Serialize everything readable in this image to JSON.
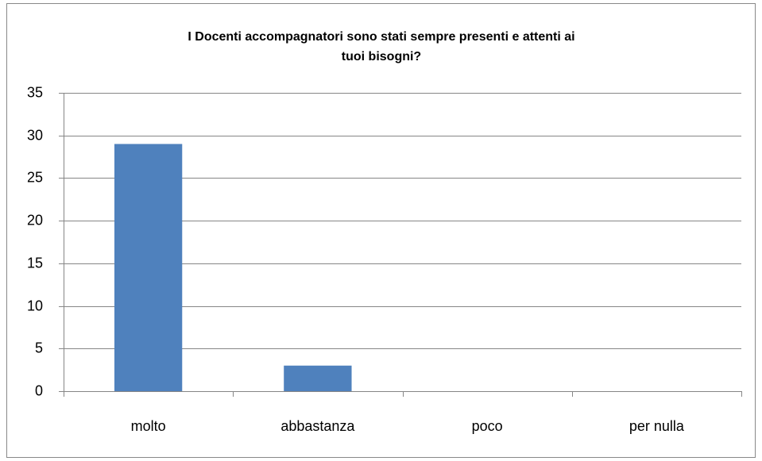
{
  "chart_data": {
    "type": "bar",
    "title": "I Docenti accompagnatori sono stati sempre presenti e attenti ai tuoi bisogni?",
    "categories": [
      "molto",
      "abbastanza",
      "poco",
      "per nulla"
    ],
    "values": [
      29,
      3,
      0,
      0
    ],
    "color": "#4f81bd",
    "ylim": [
      0,
      35
    ],
    "yticks": [
      0,
      5,
      10,
      15,
      20,
      25,
      30,
      35
    ],
    "grid": true
  }
}
